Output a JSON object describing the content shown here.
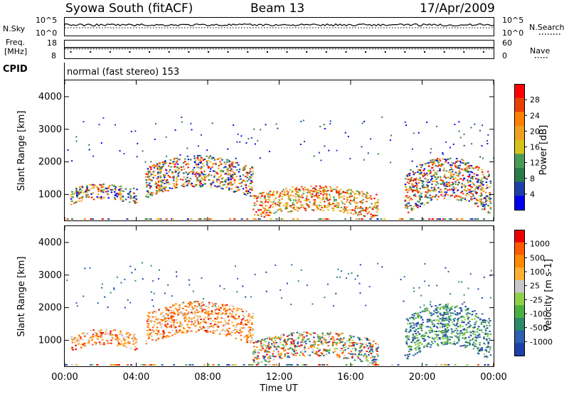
{
  "header": {
    "station": "Syowa South (fitACF)",
    "beam": "Beam 13",
    "date": "17/Apr/2009",
    "cpid_label": "CPID",
    "program": "normal (fast stereo) 153"
  },
  "nsky_panel": {
    "left_label": "N.Sky",
    "right_label": "N.Search",
    "left_ticks": [
      "10^5",
      "10^0"
    ],
    "right_ticks": [
      "10^5",
      "10^0"
    ]
  },
  "freq_panel": {
    "left_label_line1": "Freq.",
    "left_label_line2": "[MHz]",
    "left_ticks": [
      "18",
      "8"
    ],
    "right_ticks": [
      "60",
      "0"
    ],
    "right_label": "Nave"
  },
  "chart_data": [
    {
      "type": "heatmap",
      "panel": "power",
      "ylabel": "Slant Range [km]",
      "y_ticks": [
        "4000",
        "3000",
        "2000",
        "1000"
      ],
      "x_range_hours": [
        0,
        24
      ],
      "y_range_km": [
        180,
        4500
      ],
      "colorbar": {
        "label": "Power [dB]",
        "ticks": [
          "28",
          "24",
          "20",
          "16",
          "12",
          "8",
          "4"
        ],
        "colors": [
          "#0000ee",
          "#1f3fa8",
          "#2a7a4a",
          "#4a9a5a",
          "#d4c41a",
          "#f0a020",
          "#ff7f00",
          "#e84000",
          "#ff0000"
        ]
      },
      "echo_regions": [
        {
          "t0": 0.3,
          "t1": 4.0,
          "r0": 700,
          "r1": 1300,
          "level": "mixed"
        },
        {
          "t0": 4.5,
          "t1": 10.5,
          "r0": 900,
          "r1": 2100,
          "level": "mixed"
        },
        {
          "t0": 10.5,
          "t1": 17.5,
          "r0": 250,
          "r1": 1200,
          "level": "strong"
        },
        {
          "t0": 19.0,
          "t1": 23.8,
          "r0": 400,
          "r1": 2000,
          "level": "mixed"
        }
      ]
    },
    {
      "type": "heatmap",
      "panel": "velocity",
      "ylabel": "Slant Range [km]",
      "xlabel": "Time UT",
      "x_ticks": [
        "00:00",
        "04:00",
        "08:00",
        "12:00",
        "16:00",
        "20:00",
        "00:00"
      ],
      "y_ticks": [
        "4000",
        "3000",
        "2000",
        "1000"
      ],
      "x_range_hours": [
        0,
        24
      ],
      "y_range_km": [
        180,
        4500
      ],
      "colorbar": {
        "label": "Velocity [m s-1]",
        "ticks": [
          "1000",
          "500",
          "100",
          "25",
          "-25",
          "-100",
          "-500",
          "-1000"
        ],
        "colors": [
          "#1f3fa8",
          "#2e5fb0",
          "#2a8a6a",
          "#4ab040",
          "#8fd04a",
          "#c8c8c8",
          "#ffb030",
          "#ff8a00",
          "#ff5a00",
          "#ee0000"
        ]
      },
      "echo_regions": [
        {
          "t0": 0.3,
          "t1": 4.0,
          "r0": 700,
          "r1": 1300,
          "level": "toward"
        },
        {
          "t0": 4.5,
          "t1": 10.5,
          "r0": 900,
          "r1": 2100,
          "level": "toward"
        },
        {
          "t0": 10.5,
          "t1": 17.5,
          "r0": 250,
          "r1": 1200,
          "level": "mixed"
        },
        {
          "t0": 19.0,
          "t1": 23.8,
          "r0": 400,
          "r1": 2000,
          "level": "away"
        }
      ]
    }
  ]
}
